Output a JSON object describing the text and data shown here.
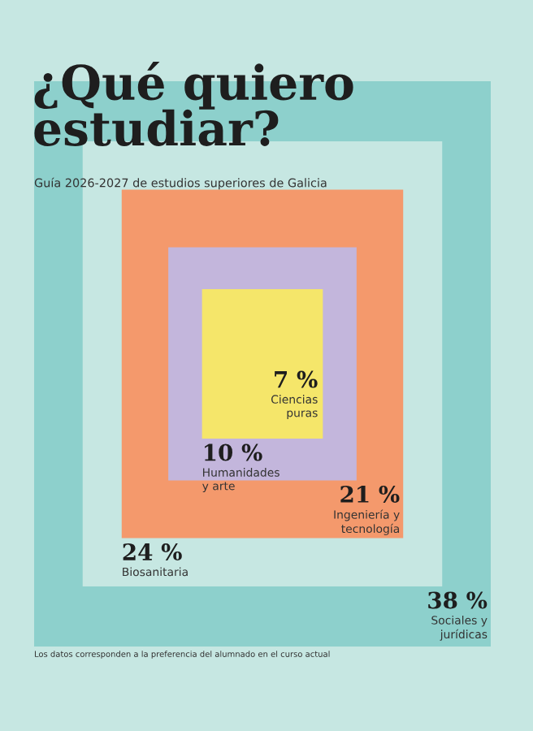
{
  "chart_data": {
    "type": "other",
    "title": "¿Qué quiero\nestudiar?",
    "subtitle": "Guía 2026-2027 de estudios superiores de Galicia",
    "categories": [
      "Sociales y\njurídicas",
      "Biosanitaria",
      "Ingeniería y\ntecnología",
      "Humanidades\ny arte",
      "Ciencias\npuras"
    ],
    "values": [
      38,
      24,
      21,
      10,
      7
    ],
    "value_labels": [
      "38 %",
      "24 %",
      "21 %",
      "10 %",
      "7 %"
    ],
    "colors": [
      "#8dd0cc",
      "#c6e7e2",
      "#f4996c",
      "#c3b6dc",
      "#f5e66a"
    ],
    "annotations": [
      "Los datos corresponden a la preferencia del alumnado en el curso actual"
    ]
  }
}
